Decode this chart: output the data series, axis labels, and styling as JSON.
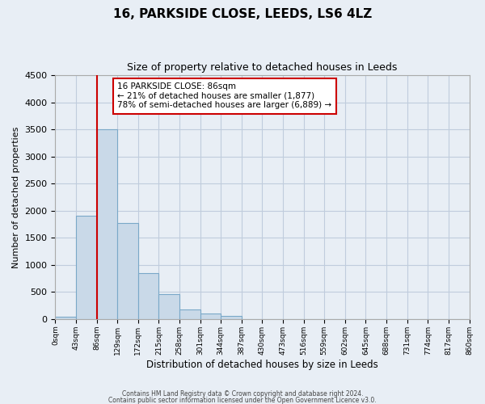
{
  "title": "16, PARKSIDE CLOSE, LEEDS, LS6 4LZ",
  "subtitle": "Size of property relative to detached houses in Leeds",
  "xlabel": "Distribution of detached houses by size in Leeds",
  "ylabel": "Number of detached properties",
  "bar_labels": [
    "0sqm",
    "43sqm",
    "86sqm",
    "129sqm",
    "172sqm",
    "215sqm",
    "258sqm",
    "301sqm",
    "344sqm",
    "387sqm",
    "430sqm",
    "473sqm",
    "516sqm",
    "559sqm",
    "602sqm",
    "645sqm",
    "688sqm",
    "731sqm",
    "774sqm",
    "817sqm",
    "860sqm"
  ],
  "bar_values": [
    40,
    1900,
    3500,
    1775,
    850,
    460,
    175,
    100,
    55,
    0,
    0,
    0,
    0,
    0,
    0,
    0,
    0,
    0,
    0,
    0
  ],
  "bar_color": "#c9d9e8",
  "bar_edge_color": "#7aa8c8",
  "vline_x": 2,
  "vline_color": "#cc0000",
  "annotation_text": "16 PARKSIDE CLOSE: 86sqm\n← 21% of detached houses are smaller (1,877)\n78% of semi-detached houses are larger (6,889) →",
  "annotation_box_color": "#cc0000",
  "ylim": [
    0,
    4500
  ],
  "yticks": [
    0,
    500,
    1000,
    1500,
    2000,
    2500,
    3000,
    3500,
    4000,
    4500
  ],
  "grid_color": "#c0ccdd",
  "background_color": "#e8eef5",
  "footer1": "Contains HM Land Registry data © Crown copyright and database right 2024.",
  "footer2": "Contains public sector information licensed under the Open Government Licence v3.0."
}
